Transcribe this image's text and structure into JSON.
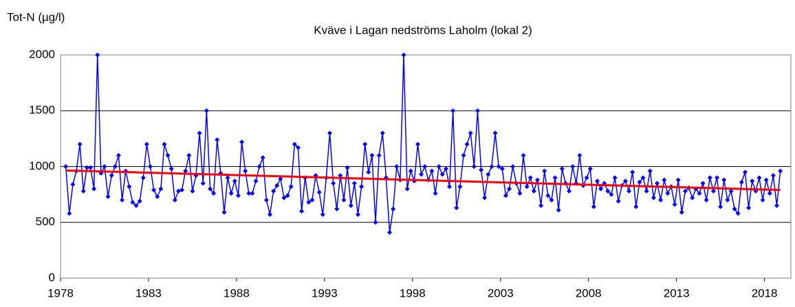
{
  "chart_data": {
    "type": "line",
    "title": "Kväve  i Lagan nedströms Laholm (lokal 2)",
    "y_label": "Tot-N (µg/l)",
    "xlim": [
      1978,
      2019.5
    ],
    "xticks": [
      1978,
      1983,
      1988,
      1993,
      1998,
      2003,
      2008,
      2013,
      2018
    ],
    "ylim": [
      0,
      2000
    ],
    "yticks": [
      0,
      500,
      1000,
      1500,
      2000
    ],
    "grid": true,
    "series": [
      {
        "color": "#0000ff",
        "marker": "diamond",
        "x": [
          1978.3,
          1978.5,
          1978.7,
          1978.9,
          1979.1,
          1979.3,
          1979.5,
          1979.7,
          1979.9,
          1980.1,
          1980.3,
          1980.5,
          1980.7,
          1980.9,
          1981.1,
          1981.3,
          1981.5,
          1981.7,
          1981.9,
          1982.1,
          1982.3,
          1982.5,
          1982.7,
          1982.9,
          1983.1,
          1983.3,
          1983.5,
          1983.7,
          1983.9,
          1984.1,
          1984.3,
          1984.5,
          1984.7,
          1984.9,
          1985.1,
          1985.3,
          1985.5,
          1985.7,
          1985.9,
          1986.1,
          1986.3,
          1986.5,
          1986.7,
          1986.9,
          1987.1,
          1987.3,
          1987.5,
          1987.7,
          1987.9,
          1988.1,
          1988.3,
          1988.5,
          1988.7,
          1988.9,
          1989.1,
          1989.3,
          1989.5,
          1989.7,
          1989.9,
          1990.1,
          1990.3,
          1990.5,
          1990.7,
          1990.9,
          1991.1,
          1991.3,
          1991.5,
          1991.7,
          1991.9,
          1992.1,
          1992.3,
          1992.5,
          1992.7,
          1992.9,
          1993.1,
          1993.3,
          1993.5,
          1993.7,
          1993.9,
          1994.1,
          1994.3,
          1994.5,
          1994.7,
          1994.9,
          1995.1,
          1995.3,
          1995.5,
          1995.7,
          1995.9,
          1996.1,
          1996.3,
          1996.5,
          1996.7,
          1996.9,
          1997.1,
          1997.3,
          1997.5,
          1997.7,
          1997.9,
          1998.1,
          1998.3,
          1998.5,
          1998.7,
          1998.9,
          1999.1,
          1999.3,
          1999.5,
          1999.7,
          1999.9,
          2000.1,
          2000.3,
          2000.5,
          2000.7,
          2000.9,
          2001.1,
          2001.3,
          2001.5,
          2001.7,
          2001.9,
          2002.1,
          2002.3,
          2002.5,
          2002.7,
          2002.9,
          2003.1,
          2003.3,
          2003.5,
          2003.7,
          2003.9,
          2004.1,
          2004.3,
          2004.5,
          2004.7,
          2004.9,
          2005.1,
          2005.3,
          2005.5,
          2005.7,
          2005.9,
          2006.1,
          2006.3,
          2006.5,
          2006.7,
          2006.9,
          2007.1,
          2007.3,
          2007.5,
          2007.7,
          2007.9,
          2008.1,
          2008.3,
          2008.5,
          2008.7,
          2008.9,
          2009.1,
          2009.3,
          2009.5,
          2009.7,
          2009.9,
          2010.1,
          2010.3,
          2010.5,
          2010.7,
          2010.9,
          2011.1,
          2011.3,
          2011.5,
          2011.7,
          2011.9,
          2012.1,
          2012.3,
          2012.5,
          2012.7,
          2012.9,
          2013.1,
          2013.3,
          2013.5,
          2013.7,
          2013.9,
          2014.1,
          2014.3,
          2014.5,
          2014.7,
          2014.9,
          2015.1,
          2015.3,
          2015.5,
          2015.7,
          2015.9,
          2016.1,
          2016.3,
          2016.5,
          2016.7,
          2016.9,
          2017.1,
          2017.3,
          2017.5,
          2017.7,
          2017.9,
          2018.1,
          2018.3,
          2018.5,
          2018.7,
          2018.9
        ],
        "values": [
          1000,
          580,
          840,
          960,
          1200,
          780,
          990,
          990,
          800,
          2000,
          940,
          1000,
          730,
          920,
          1000,
          1100,
          700,
          960,
          820,
          680,
          650,
          690,
          900,
          1200,
          1000,
          790,
          730,
          800,
          1200,
          1100,
          980,
          700,
          780,
          790,
          960,
          1100,
          780,
          920,
          1300,
          850,
          1500,
          800,
          760,
          1240,
          940,
          590,
          900,
          760,
          870,
          740,
          1220,
          960,
          760,
          760,
          870,
          1000,
          1080,
          700,
          570,
          780,
          830,
          890,
          720,
          740,
          820,
          1200,
          1170,
          600,
          900,
          680,
          700,
          920,
          770,
          570,
          900,
          1300,
          850,
          620,
          920,
          700,
          990,
          650,
          850,
          570,
          820,
          1200,
          950,
          1100,
          500,
          1100,
          1300,
          900,
          410,
          620,
          1000,
          880,
          2000,
          800,
          960,
          870,
          1200,
          930,
          1000,
          880,
          960,
          760,
          1000,
          930,
          980,
          820,
          1500,
          630,
          820,
          1100,
          1200,
          1300,
          1000,
          1500,
          970,
          720,
          930,
          1000,
          1300,
          1000,
          980,
          740,
          800,
          1000,
          850,
          760,
          1100,
          820,
          900,
          780,
          880,
          650,
          960,
          740,
          700,
          900,
          610,
          980,
          850,
          780,
          1000,
          850,
          1100,
          830,
          900,
          980,
          640,
          870,
          800,
          850,
          780,
          750,
          900,
          690,
          830,
          870,
          780,
          950,
          640,
          860,
          900,
          780,
          960,
          720,
          850,
          700,
          880,
          760,
          820,
          660,
          880,
          590,
          780,
          810,
          720,
          800,
          760,
          850,
          700,
          900,
          780,
          900,
          640,
          880,
          700,
          780,
          620,
          580,
          860,
          950,
          630,
          870,
          780,
          900,
          700,
          880,
          760,
          920,
          650,
          960
        ]
      },
      {
        "color": "#ff0000",
        "x": [
          1978.3,
          2018.9
        ],
        "values": [
          965,
          790
        ]
      }
    ]
  }
}
